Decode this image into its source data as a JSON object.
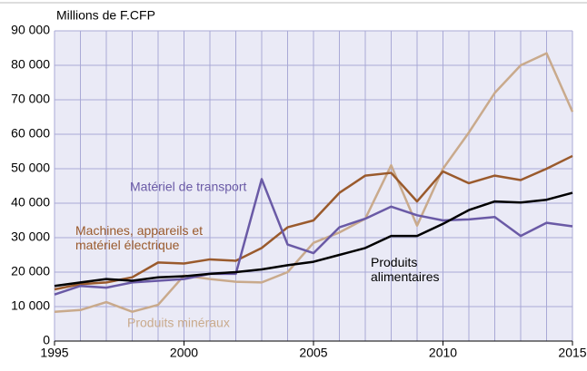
{
  "chart_data": {
    "type": "line",
    "y_label": "Millions de F.CFP",
    "x": [
      1995,
      1996,
      1997,
      1998,
      1999,
      2000,
      2001,
      2002,
      2003,
      2004,
      2005,
      2006,
      2007,
      2008,
      2009,
      2010,
      2011,
      2012,
      2013,
      2014,
      2015
    ],
    "xlim": [
      1995,
      2015
    ],
    "xticks": [
      1995,
      2000,
      2005,
      2010,
      2015
    ],
    "ylim": [
      0,
      90000
    ],
    "yticks": [
      0,
      {
        "value": 10000,
        "label": "10 000"
      },
      {
        "value": 20000,
        "label": "20 000"
      },
      {
        "value": 30000,
        "label": "30 000"
      },
      {
        "value": 40000,
        "label": "40 000"
      },
      {
        "value": 50000,
        "label": "50 000"
      },
      {
        "value": 60000,
        "label": "60 000"
      },
      {
        "value": 70000,
        "label": "70 000"
      },
      {
        "value": 80000,
        "label": "80 000"
      },
      {
        "value": 90000,
        "label": "90 000"
      }
    ],
    "grid": true,
    "series": [
      {
        "name": "Produits minéraux",
        "color": "#c9aa8c",
        "values": [
          8500,
          9000,
          11300,
          8500,
          10500,
          19000,
          18000,
          17200,
          17000,
          20000,
          28500,
          31500,
          35500,
          51000,
          33500,
          50000,
          60500,
          72000,
          80000,
          83500,
          66500
        ]
      },
      {
        "name": "Machines, appareils et\nmatériel électrique",
        "color": "#9a5a2c",
        "values": [
          15000,
          16500,
          17000,
          18500,
          22800,
          22500,
          23700,
          23300,
          27000,
          33000,
          35000,
          43000,
          48000,
          48800,
          40500,
          49200,
          45800,
          48000,
          46700,
          50000,
          53700
        ]
      },
      {
        "name": "Matériel de transport",
        "color": "#6a5aa6",
        "values": [
          13500,
          16000,
          15500,
          17000,
          17500,
          18000,
          19500,
          19500,
          47000,
          28000,
          25500,
          33000,
          35500,
          39000,
          36500,
          35000,
          35300,
          36000,
          30500,
          34300,
          33300
        ]
      },
      {
        "name": "Produits\nalimentaires",
        "color": "#000000",
        "values": [
          16000,
          17000,
          18000,
          17500,
          18500,
          18800,
          19500,
          20000,
          20800,
          22000,
          23000,
          25000,
          27000,
          30500,
          30500,
          34000,
          38000,
          40500,
          40200,
          41000,
          43000
        ]
      }
    ]
  }
}
